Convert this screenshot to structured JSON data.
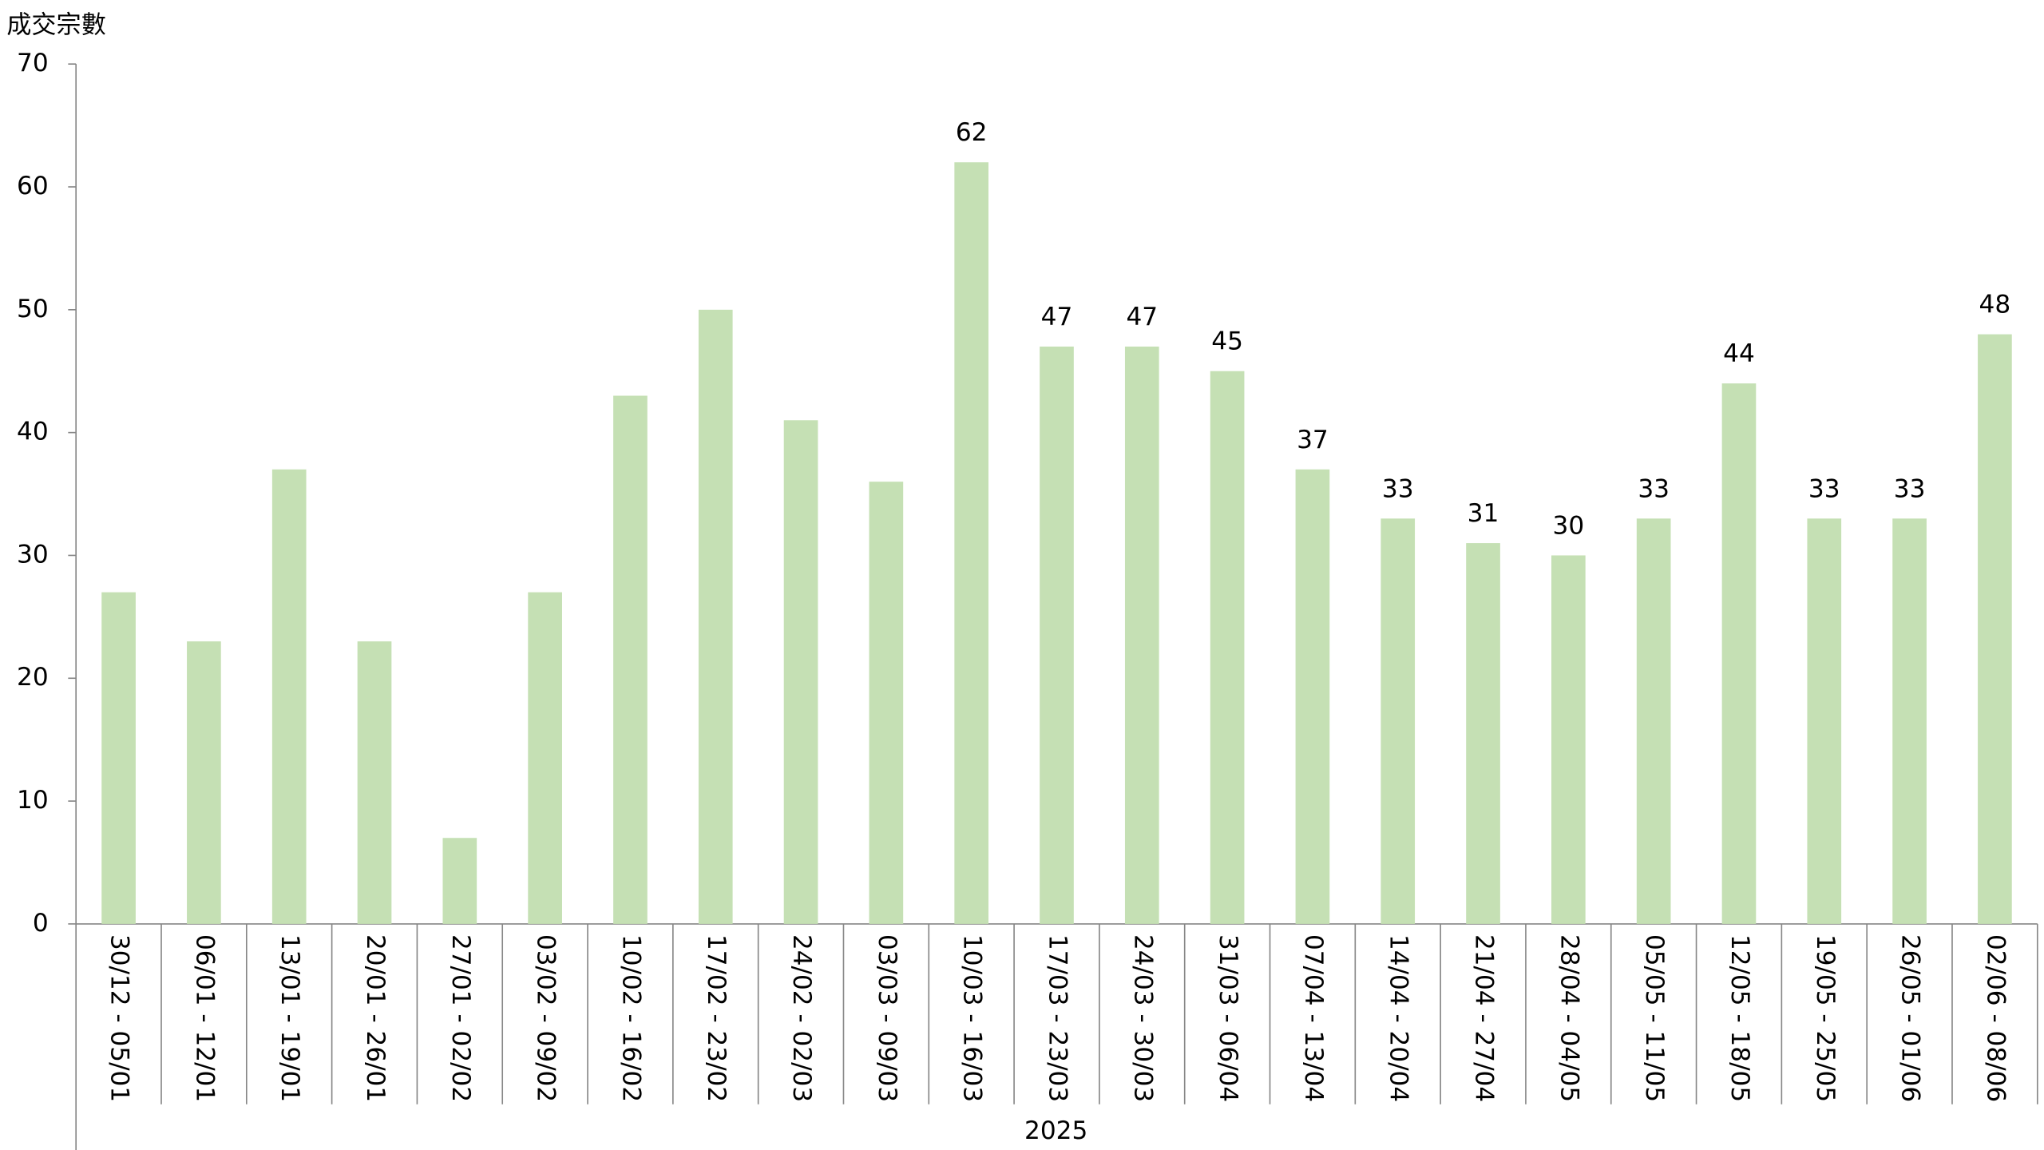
{
  "chart_data": {
    "type": "bar",
    "y_axis_label": "成交宗數",
    "x_group_label": "2025",
    "categories": [
      "30/12 - 05/01",
      "06/01 - 12/01",
      "13/01 - 19/01",
      "20/01 - 26/01",
      "27/01 - 02/02",
      "03/02 - 09/02",
      "10/02 - 16/02",
      "17/02 - 23/02",
      "24/02 - 02/03",
      "03/03 - 09/03",
      "10/03 - 16/03",
      "17/03 - 23/03",
      "24/03 - 30/03",
      "31/03 - 06/04",
      "07/04 - 13/04",
      "14/04 - 20/04",
      "21/04 - 27/04",
      "28/04 - 04/05",
      "05/05 - 11/05",
      "12/05 - 18/05",
      "19/05 - 25/05",
      "26/05 - 01/06",
      "02/06 - 08/06"
    ],
    "values": [
      27,
      23,
      37,
      23,
      7,
      27,
      43,
      50,
      41,
      36,
      62,
      47,
      47,
      45,
      37,
      33,
      31,
      30,
      33,
      44,
      33,
      33,
      48
    ],
    "value_labels": [
      null,
      null,
      null,
      null,
      null,
      null,
      null,
      null,
      null,
      null,
      "62",
      "47",
      "47",
      "45",
      "37",
      "33",
      "31",
      "30",
      "33",
      "44",
      "33",
      "33",
      "48"
    ],
    "color": "#c5e0b4",
    "ylim": [
      0,
      70
    ],
    "yticks": [
      0,
      10,
      20,
      30,
      40,
      50,
      60,
      70
    ],
    "grid": false
  }
}
